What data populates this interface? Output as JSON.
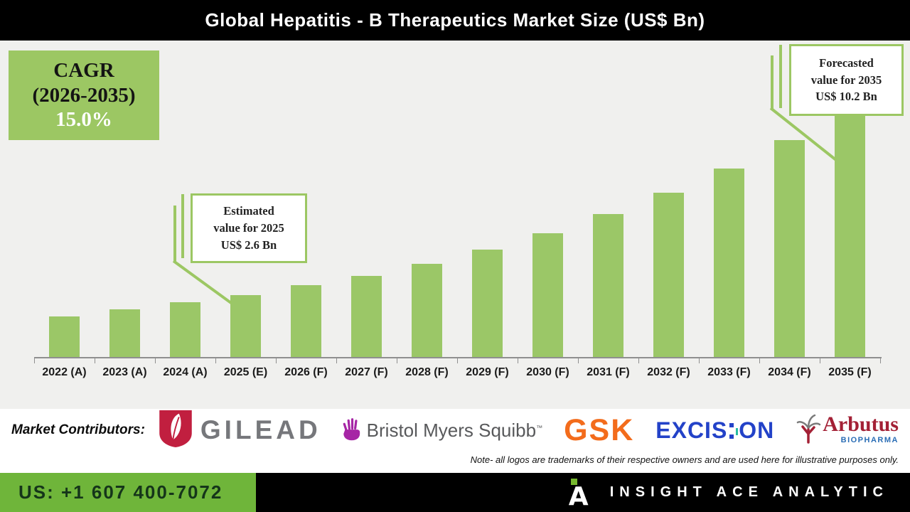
{
  "header": {
    "title": "Global Hepatitis - B Therapeutics Market Size (US$ Bn)"
  },
  "cagr": {
    "label": "CAGR",
    "period": "(2026-2035)",
    "value": "15.0%"
  },
  "callouts": {
    "estimated": {
      "line1": "Estimated",
      "line2": "value for 2025",
      "line3": "US$ 2.6 Bn"
    },
    "forecasted": {
      "line1": "Forecasted",
      "line2": "value for 2035",
      "line3": "US$ 10.2 Bn"
    }
  },
  "chart_data": {
    "type": "bar",
    "title": "Global Hepatitis - B Therapeutics Market Size (US$ Bn)",
    "categories": [
      "2022 (A)",
      "2023 (A)",
      "2024 (A)",
      "2025 (E)",
      "2026 (F)",
      "2027 (F)",
      "2028 (F)",
      "2029 (F)",
      "2030 (F)",
      "2031 (F)",
      "2032 (F)",
      "2033 (F)",
      "2034 (F)",
      "2035 (F)"
    ],
    "values": [
      1.7,
      2.0,
      2.3,
      2.6,
      3.0,
      3.4,
      3.9,
      4.5,
      5.2,
      6.0,
      6.9,
      7.9,
      9.1,
      10.2
    ],
    "unit": "US$ Bn",
    "xlabel": "",
    "ylabel": "",
    "ylim": [
      0,
      10.5
    ],
    "grid": false,
    "legend": false,
    "bar_color": "#9bc767",
    "cagr_percent": "15.0%",
    "cagr_period": "2026-2035",
    "annotations": [
      {
        "target": "2025 (E)",
        "text": "Estimated value for 2025 US$ 2.6 Bn"
      },
      {
        "target": "2035 (F)",
        "text": "Forecasted value for 2035 US$ 10.2 Bn"
      }
    ]
  },
  "contributors": {
    "label": "Market Contributors:",
    "items": [
      "Gilead",
      "Bristol Myers Squibb",
      "GSK",
      "Excision",
      "Arbutus Biopharma"
    ],
    "note": "Note- all logos are trademarks of their respective owners and are used here for illustrative purposes only."
  },
  "logos": {
    "gilead": {
      "text": "GILEAD"
    },
    "bms": {
      "text": "Bristol Myers Squibb",
      "tm": "™"
    },
    "gsk": {
      "text": "GSK"
    },
    "excision": {
      "pre": "EXCIS",
      "post": "ON"
    },
    "arbutus": {
      "text": "Arbutus",
      "sub": "BIOPHARMA"
    }
  },
  "footer": {
    "phone": "US: +1 607 400-7072",
    "brand": "INSIGHT ACE ANALYTIC",
    "mark_letter": "A"
  },
  "colors": {
    "bar_green": "#9bc767",
    "footer_green": "#6fb53a",
    "header_bg": "#000000",
    "chart_bg": "#f0f0ee",
    "gilead_red": "#c11f3f",
    "bms_purple": "#a625a5",
    "gsk_orange": "#f36c1c",
    "excision_blue": "#2342c8",
    "excision_teal": "#27bca2",
    "arbutus_red": "#a32035",
    "arbutus_blue": "#2a6db5"
  }
}
